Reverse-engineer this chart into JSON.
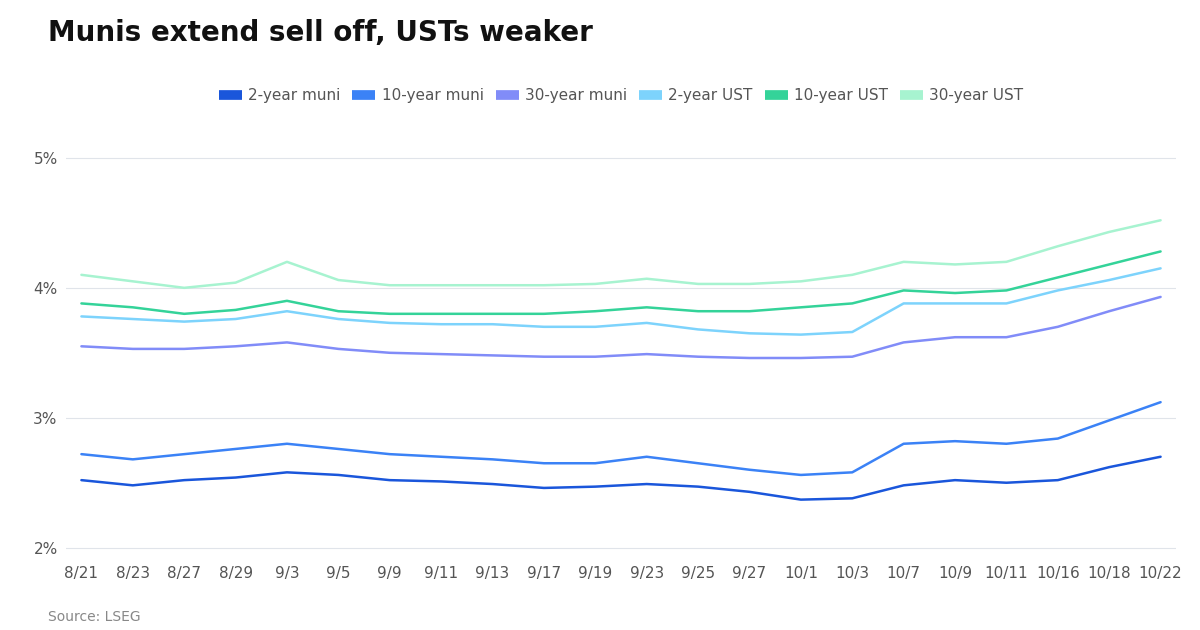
{
  "title": "Munis extend sell off, USTs weaker",
  "source": "Source: LSEG",
  "x_labels": [
    "8/21",
    "8/23",
    "8/27",
    "8/29",
    "9/3",
    "9/5",
    "9/9",
    "9/11",
    "9/13",
    "9/17",
    "9/19",
    "9/23",
    "9/25",
    "9/27",
    "10/1",
    "10/3",
    "10/7",
    "10/9",
    "10/11",
    "10/16",
    "10/18",
    "10/22"
  ],
  "ylim": [
    0.019,
    0.051
  ],
  "yticks": [
    0.02,
    0.03,
    0.04,
    0.05
  ],
  "ytick_labels": [
    "2%",
    "3%",
    "4%",
    "5%"
  ],
  "series": {
    "2yr_muni": {
      "color": "#1a56db",
      "label": "2-year muni",
      "values": [
        0.0252,
        0.0248,
        0.0252,
        0.0254,
        0.0258,
        0.0256,
        0.0252,
        0.0251,
        0.0249,
        0.0246,
        0.0247,
        0.0249,
        0.0247,
        0.0243,
        0.0237,
        0.0238,
        0.0248,
        0.0252,
        0.025,
        0.0252,
        0.0262,
        0.027
      ]
    },
    "10yr_muni": {
      "color": "#3b82f6",
      "label": "10-year muni",
      "values": [
        0.0272,
        0.0268,
        0.0272,
        0.0276,
        0.028,
        0.0276,
        0.0272,
        0.027,
        0.0268,
        0.0265,
        0.0265,
        0.027,
        0.0265,
        0.026,
        0.0256,
        0.0258,
        0.028,
        0.0282,
        0.028,
        0.0284,
        0.0298,
        0.0312
      ]
    },
    "30yr_muni": {
      "color": "#818cf8",
      "label": "30-year muni",
      "values": [
        0.0355,
        0.0353,
        0.0353,
        0.0355,
        0.0358,
        0.0353,
        0.035,
        0.0349,
        0.0348,
        0.0347,
        0.0347,
        0.0349,
        0.0347,
        0.0346,
        0.0346,
        0.0347,
        0.0358,
        0.0362,
        0.0362,
        0.037,
        0.0382,
        0.0393
      ]
    },
    "2yr_ust": {
      "color": "#7dd3fc",
      "label": "2-year UST",
      "values": [
        0.0378,
        0.0376,
        0.0374,
        0.0376,
        0.0382,
        0.0376,
        0.0373,
        0.0372,
        0.0372,
        0.037,
        0.037,
        0.0373,
        0.0368,
        0.0365,
        0.0364,
        0.0366,
        0.0388,
        0.0388,
        0.0388,
        0.0398,
        0.0406,
        0.0415
      ]
    },
    "10yr_ust": {
      "color": "#34d399",
      "label": "10-year UST",
      "values": [
        0.0388,
        0.0385,
        0.038,
        0.0383,
        0.039,
        0.0382,
        0.038,
        0.038,
        0.038,
        0.038,
        0.0382,
        0.0385,
        0.0382,
        0.0382,
        0.0385,
        0.0388,
        0.0398,
        0.0396,
        0.0398,
        0.0408,
        0.0418,
        0.0428
      ]
    },
    "30yr_ust": {
      "color": "#a7f3d0",
      "label": "30-year UST",
      "values": [
        0.041,
        0.0405,
        0.04,
        0.0404,
        0.042,
        0.0406,
        0.0402,
        0.0402,
        0.0402,
        0.0402,
        0.0403,
        0.0407,
        0.0403,
        0.0403,
        0.0405,
        0.041,
        0.042,
        0.0418,
        0.042,
        0.0432,
        0.0443,
        0.0452
      ]
    }
  },
  "background_color": "#ffffff",
  "grid_color": "#e0e4ea",
  "title_fontsize": 20,
  "legend_fontsize": 11,
  "tick_fontsize": 11,
  "source_fontsize": 10
}
